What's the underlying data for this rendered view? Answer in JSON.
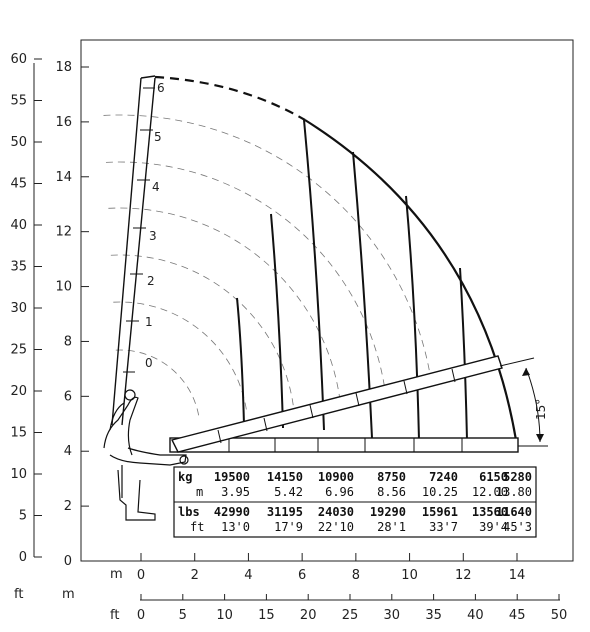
{
  "units": {
    "ft_left": "ft",
    "m_left": "m",
    "m_bottom": "m",
    "ft_bottom": "ft"
  },
  "axis_ft_y": [
    "0",
    "5",
    "10",
    "15",
    "20",
    "25",
    "30",
    "35",
    "40",
    "45",
    "50",
    "55",
    "60"
  ],
  "axis_m_y": [
    "0",
    "2",
    "4",
    "6",
    "8",
    "10",
    "12",
    "14",
    "16",
    "18"
  ],
  "axis_m_x": [
    "0",
    "2",
    "4",
    "6",
    "8",
    "10",
    "12",
    "14"
  ],
  "axis_ft_x": [
    "0",
    "5",
    "10",
    "15",
    "20",
    "25",
    "30",
    "35",
    "40",
    "45",
    "50"
  ],
  "extensions": [
    "0",
    "1",
    "2",
    "3",
    "4",
    "5",
    "6"
  ],
  "angle_label": "15°",
  "table": {
    "kg_label": "kg",
    "m_label": "m",
    "lbs_label": "lbs",
    "ft_label": "ft",
    "kg": [
      "19500",
      "14150",
      "10900",
      "8750",
      "7240",
      "6150",
      "5280"
    ],
    "m": [
      "3.95",
      "5.42",
      "6.96",
      "8.56",
      "10.25",
      "12.00",
      "13.80"
    ],
    "lbs": [
      "42990",
      "31195",
      "24030",
      "19290",
      "15961",
      "13560",
      "11640"
    ],
    "ft": [
      "13'0",
      "17'9",
      "22'10",
      "28'1",
      "33'7",
      "39'4",
      "45'3"
    ]
  },
  "chart_data": {
    "type": "load-chart",
    "x_axis_m": [
      0,
      14
    ],
    "y_axis_m": [
      0,
      18
    ],
    "ticks_ft_x": [
      0,
      5,
      10,
      15,
      20,
      25,
      30,
      35,
      40,
      45,
      50
    ],
    "ticks_ft_y": [
      0,
      5,
      10,
      15,
      20,
      25,
      30,
      35,
      40,
      45,
      50,
      55,
      60
    ],
    "boom_extensions": [
      "0",
      "1",
      "2",
      "3",
      "4",
      "5",
      "6"
    ],
    "min_boom_angle_deg": 15,
    "capacity_kg": [
      19500,
      14150,
      10900,
      8750,
      7240,
      6150,
      5280
    ],
    "radius_m": [
      3.95,
      5.42,
      6.96,
      8.56,
      10.25,
      12.0,
      13.8
    ],
    "capacity_lbs": [
      42990,
      31195,
      24030,
      19290,
      15961,
      13560,
      11640
    ],
    "radius_ft": [
      "13'0",
      "17'9",
      "22'10",
      "28'1",
      "33'7",
      "39'4",
      "45'3"
    ]
  }
}
